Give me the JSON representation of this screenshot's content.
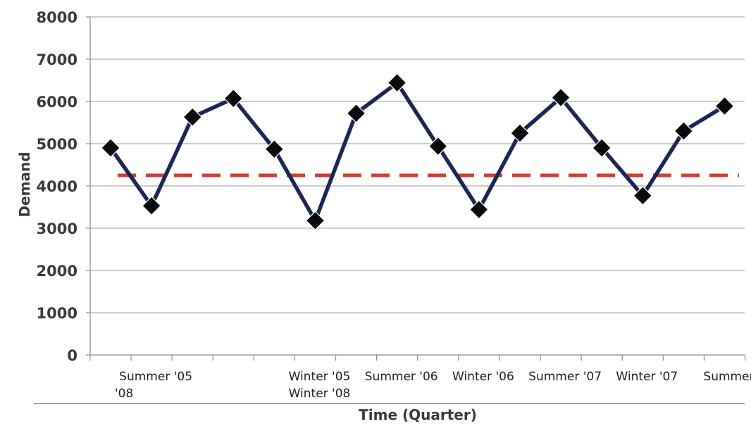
{
  "chart_data": {
    "type": "line",
    "title": "",
    "xlabel": "Time (Quarter)",
    "ylabel": "Demand",
    "ylim": [
      0,
      8000
    ],
    "y_ticks": [
      "0",
      "1000",
      "2000",
      "3000",
      "4000",
      "5000",
      "6000",
      "7000",
      "8000"
    ],
    "grid": "horizontal",
    "x_tick_labels": [
      {
        "text": "Summer '05",
        "index": 1
      },
      {
        "text": "'08",
        "index": 1
      },
      {
        "text": "Winter '05",
        "index": 5
      },
      {
        "text": "Winter '08",
        "index": 5
      },
      {
        "text": "Summer '06",
        "index": 7
      },
      {
        "text": "Winter '06",
        "index": 9
      },
      {
        "text": "Summer '07",
        "index": 11
      },
      {
        "text": "Winter '07",
        "index": 13
      },
      {
        "text": "Summer",
        "index": 15
      }
    ],
    "series": [
      {
        "values": [
          4900,
          3530,
          5630,
          6070,
          4870,
          3180,
          5720,
          6440,
          4940,
          3440,
          5250,
          6090,
          4900,
          3770,
          5300,
          5890
        ],
        "color": "#1b2657",
        "marker": "diamond"
      }
    ],
    "reference_line": {
      "value": 4250,
      "color": "#d63a2e",
      "style": "dashed"
    }
  }
}
